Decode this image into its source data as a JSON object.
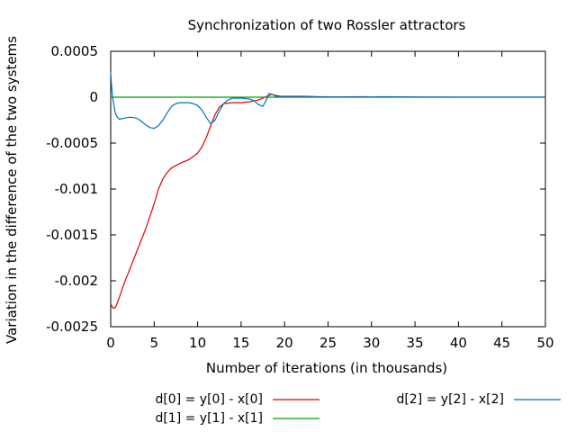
{
  "chart_data": {
    "type": "line",
    "title": "Synchronization of two Rossler attractors",
    "xlabel": "Number of iterations (in thousands)",
    "ylabel": "Variation in the difference of the two systems",
    "xlim": [
      0,
      50
    ],
    "ylim": [
      -0.0025,
      0.0005
    ],
    "x_ticks": [
      0,
      5,
      10,
      15,
      20,
      25,
      30,
      35,
      40,
      45,
      50
    ],
    "x_tick_labels": [
      "0",
      "5",
      "10",
      "15",
      "20",
      "25",
      "30",
      "35",
      "40",
      "45",
      "50"
    ],
    "y_ticks": [
      0.0005,
      0,
      -0.0005,
      -0.001,
      -0.0015,
      -0.002,
      -0.0025
    ],
    "y_tick_labels": [
      "0.0005",
      "0",
      "-0.0005",
      "-0.001",
      "-0.0015",
      "-0.002",
      "-0.0025"
    ],
    "grid": false,
    "legend_position": "bottom",
    "series": [
      {
        "name": "d[0] = y[0] - x[0]",
        "color": "#e00000",
        "x": [
          0,
          0.2,
          0.4,
          0.6,
          1,
          1.5,
          2,
          3,
          4,
          5,
          5.5,
          6,
          6.5,
          7,
          8,
          9,
          10,
          10.5,
          11,
          11.5,
          12,
          12.5,
          13,
          14,
          15,
          16,
          17,
          17.5,
          18,
          18.5,
          19,
          19.5,
          20,
          22,
          24,
          26,
          29.5
        ],
        "y": [
          -0.00225,
          -0.00229,
          -0.0023,
          -0.00228,
          -0.00218,
          -0.00204,
          -0.00192,
          -0.00168,
          -0.00144,
          -0.00116,
          -0.001,
          -0.00089,
          -0.00082,
          -0.00077,
          -0.00072,
          -0.00068,
          -0.00061,
          -0.00054,
          -0.00044,
          -0.00031,
          -0.00019,
          -0.00011,
          -7e-05,
          -6e-05,
          -6e-05,
          -5e-05,
          -3e-05,
          -1e-05,
          1e-05,
          3e-05,
          2e-05,
          1e-05,
          1e-05,
          1e-05,
          5e-06,
          3e-06,
          5e-06
        ]
      },
      {
        "name": "d[1] = y[1] - x[1]",
        "color": "#00a000",
        "x": [
          0,
          5,
          10,
          15,
          17.5,
          20,
          30,
          40,
          50
        ],
        "y": [
          0,
          0,
          0,
          0,
          0,
          0,
          0,
          0,
          0
        ]
      },
      {
        "name": "d[2] = y[2] - x[2]",
        "color": "#0070c0",
        "x": [
          0,
          0.1,
          0.2,
          0.35,
          0.5,
          0.7,
          1,
          1.5,
          2,
          2.5,
          3,
          3.5,
          4,
          4.5,
          5,
          5.5,
          6,
          6.5,
          7,
          7.5,
          8,
          8.5,
          9,
          9.5,
          10,
          10.5,
          11,
          11.5,
          12,
          12.5,
          13,
          13.5,
          14,
          15,
          16,
          16.5,
          17,
          17.5,
          17.8,
          18.2,
          18.6,
          19,
          19.5,
          20,
          22,
          25,
          30,
          31,
          35,
          40,
          45,
          50
        ],
        "y": [
          0.00028,
          0.00012,
          2e-05,
          -8e-05,
          -0.00016,
          -0.00021,
          -0.00024,
          -0.00023,
          -0.00022,
          -0.00022,
          -0.00023,
          -0.00026,
          -0.0003,
          -0.00033,
          -0.00034,
          -0.00031,
          -0.00025,
          -0.00017,
          -0.0001,
          -7e-05,
          -6e-05,
          -6e-05,
          -6e-05,
          -7e-05,
          -9e-05,
          -0.00014,
          -0.00022,
          -0.00029,
          -0.00025,
          -0.00015,
          -7e-05,
          -3e-05,
          -1e-05,
          -1e-05,
          -2e-05,
          -4e-05,
          -8e-05,
          -0.0001,
          -5e-05,
          4e-05,
          3e-05,
          1e-05,
          1e-05,
          5e-06,
          5e-06,
          3e-06,
          3e-06,
          5e-06,
          3e-06,
          2e-06,
          2e-06,
          2e-06
        ]
      }
    ]
  }
}
